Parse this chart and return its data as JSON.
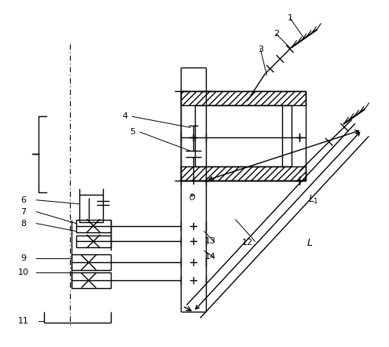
{
  "fig_width": 4.95,
  "fig_height": 4.42,
  "dpi": 100,
  "line_color": "#000000",
  "bg_color": "#ffffff",
  "linewidth": 1.0
}
